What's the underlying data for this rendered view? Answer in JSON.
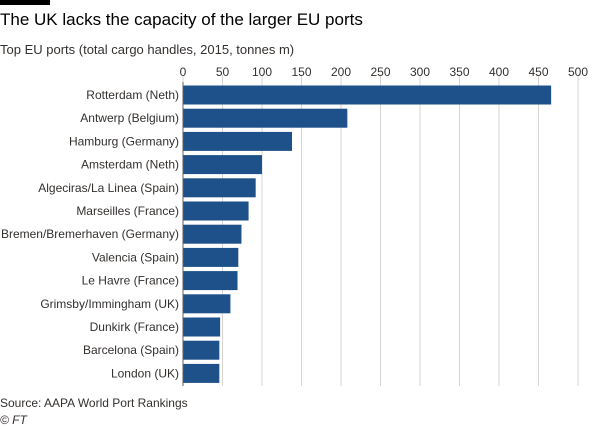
{
  "header": {
    "title": "The UK lacks the capacity of the larger EU ports",
    "subtitle": "Top EU ports (total cargo handles, 2015, tonnes m)"
  },
  "footer": {
    "source": "Source: AAPA World Port Rankings",
    "credit": "© FT"
  },
  "colors": {
    "bar": "#1e5089",
    "grid": "#d9d4cf",
    "axis": "#66605c"
  },
  "chart_data": {
    "type": "bar",
    "orientation": "horizontal",
    "title": "The UK lacks the capacity of the larger EU ports",
    "subtitle": "Top EU ports (total cargo handles, 2015, tonnes m)",
    "xlabel": "",
    "ylabel": "",
    "xlim": [
      0,
      500
    ],
    "xticks": [
      0,
      50,
      100,
      150,
      200,
      250,
      300,
      350,
      400,
      450,
      500
    ],
    "grid": true,
    "categories": [
      "Rotterdam (Neth)",
      "Antwerp (Belgium)",
      "Hamburg (Germany)",
      "Amsterdam (Neth)",
      "Algeciras/La Linea (Spain)",
      "Marseilles (France)",
      "Bremen/Bremerhaven (Germany)",
      "Valencia (Spain)",
      "Le Havre (France)",
      "Grimsby/Immingham (UK)",
      "Dunkirk (France)",
      "Barcelona (Spain)",
      "London (UK)"
    ],
    "values": [
      466,
      208,
      138,
      100,
      92,
      83,
      74,
      70,
      69,
      60,
      47,
      46,
      46
    ]
  }
}
